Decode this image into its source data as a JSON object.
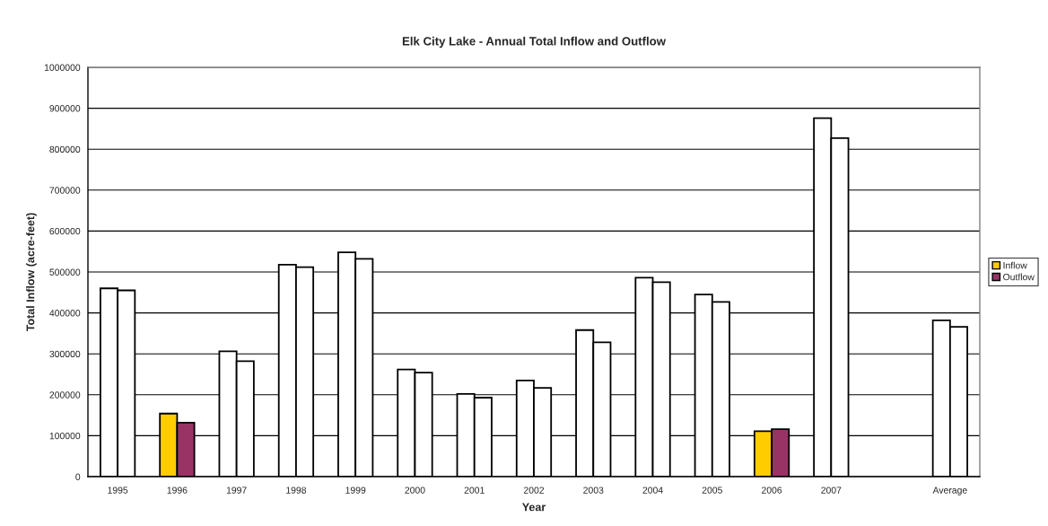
{
  "chart_data": {
    "type": "bar",
    "title": "Elk City Lake - Annual Total Inflow and Outflow",
    "xlabel": "Year",
    "ylabel": "Total Inflow (acre-feet)",
    "categories": [
      "1995",
      "1996",
      "1997",
      "1998",
      "1999",
      "2000",
      "2001",
      "2002",
      "2003",
      "2004",
      "2005",
      "2006",
      "2007",
      null,
      "Average"
    ],
    "series": [
      {
        "name": "Inflow",
        "color": "#ffcc00",
        "colors": [
          "#ffffff",
          "#ffcc00",
          "#ffffff",
          "#ffffff",
          "#ffffff",
          "#ffffff",
          "#ffffff",
          "#ffffff",
          "#ffffff",
          "#ffffff",
          "#ffffff",
          "#ffcc00",
          "#ffffff",
          "#ffffff",
          "#ffffff"
        ],
        "values": [
          460000,
          154000,
          306000,
          518000,
          548000,
          262000,
          202000,
          235000,
          358000,
          486000,
          445000,
          111000,
          876000,
          null,
          382000
        ]
      },
      {
        "name": "Outflow",
        "color": "#993366",
        "colors": [
          "#ffffff",
          "#993366",
          "#ffffff",
          "#ffffff",
          "#ffffff",
          "#ffffff",
          "#ffffff",
          "#ffffff",
          "#ffffff",
          "#ffffff",
          "#ffffff",
          "#993366",
          "#ffffff",
          "#ffffff",
          "#ffffff"
        ],
        "values": [
          455000,
          132000,
          282000,
          512000,
          532000,
          254000,
          193000,
          217000,
          328000,
          475000,
          427000,
          116000,
          827000,
          null,
          366000
        ]
      }
    ],
    "ylim": [
      0,
      1000000
    ],
    "yticks": [
      0,
      100000,
      200000,
      300000,
      400000,
      500000,
      600000,
      700000,
      800000,
      900000,
      1000000
    ],
    "grid": "y",
    "legend": "right"
  }
}
